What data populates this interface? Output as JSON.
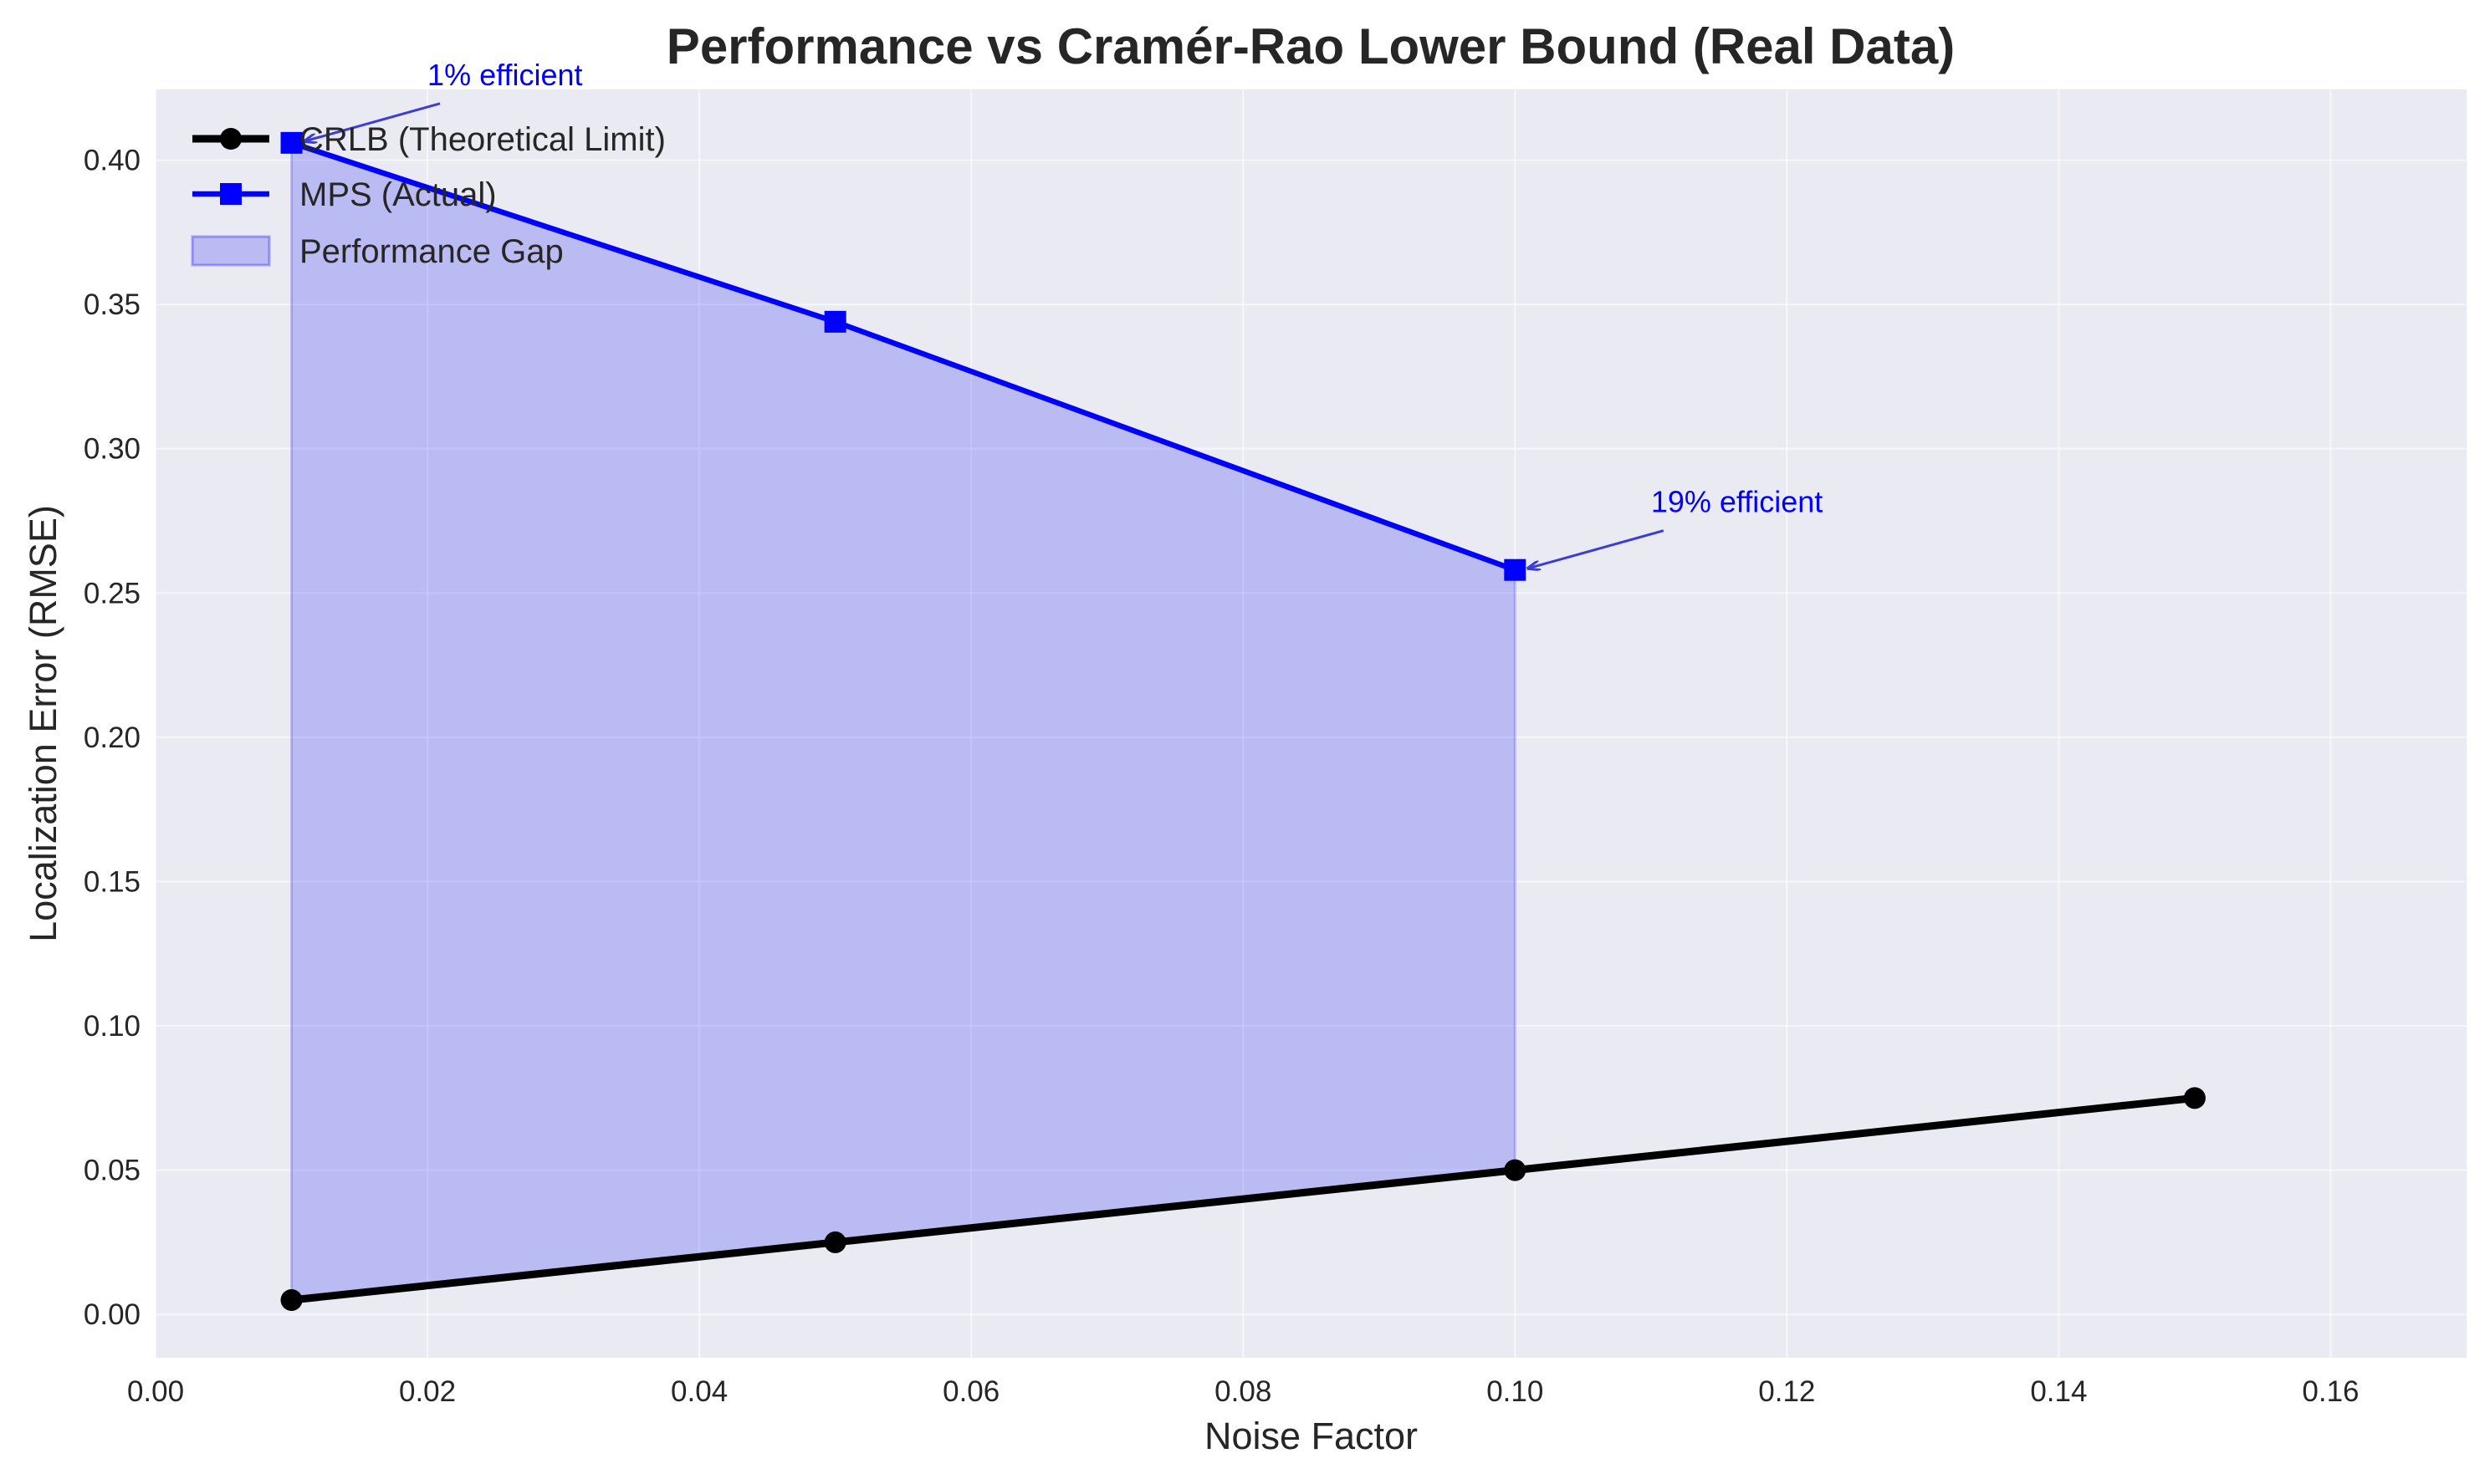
{
  "chart_data": {
    "type": "line",
    "title": "Performance vs Cramér-Rao Lower Bound (Real Data)",
    "xlabel": "Noise Factor",
    "ylabel": "Localization Error (RMSE)",
    "xlim": [
      0.0,
      0.17
    ],
    "ylim": [
      -0.015,
      0.4245
    ],
    "x_ticks": [
      0.0,
      0.02,
      0.04,
      0.06,
      0.08,
      0.1,
      0.12,
      0.14,
      0.16
    ],
    "x_tick_labels": [
      "0.00",
      "0.02",
      "0.04",
      "0.06",
      "0.08",
      "0.10",
      "0.12",
      "0.14",
      "0.16"
    ],
    "y_ticks": [
      0.0,
      0.05,
      0.1,
      0.15,
      0.2,
      0.25,
      0.3,
      0.35,
      0.4
    ],
    "y_tick_labels": [
      "0.00",
      "0.05",
      "0.10",
      "0.15",
      "0.20",
      "0.25",
      "0.30",
      "0.35",
      "0.40"
    ],
    "grid": true,
    "legend_position": "upper-left",
    "series": [
      {
        "name": "CRLB (Theoretical Limit)",
        "color": "#000000",
        "marker": "circle",
        "x": [
          0.01,
          0.05,
          0.1,
          0.15
        ],
        "y": [
          0.005,
          0.025,
          0.05,
          0.075
        ]
      },
      {
        "name": "MPS (Actual)",
        "color": "#0000ff",
        "marker": "square",
        "x": [
          0.01,
          0.05,
          0.1
        ],
        "y": [
          0.406,
          0.344,
          0.258
        ]
      }
    ],
    "fill_between": {
      "name": "Performance Gap",
      "color": "#0000ff",
      "opacity": 0.2,
      "x": [
        0.01,
        0.05,
        0.1
      ],
      "lower": [
        0.005,
        0.025,
        0.05
      ],
      "upper": [
        0.406,
        0.344,
        0.258
      ]
    },
    "annotations": [
      {
        "text": "1% efficient",
        "point": [
          0.01,
          0.406
        ],
        "text_at": [
          0.02,
          0.426
        ]
      },
      {
        "text": "19% efficient",
        "point": [
          0.1,
          0.258
        ],
        "text_at": [
          0.11,
          0.278
        ]
      }
    ],
    "colors": {
      "figure_background": "#ffffff",
      "plot_background": "#eaeaf2",
      "grid": "#ffffff",
      "text": "#262626"
    }
  }
}
